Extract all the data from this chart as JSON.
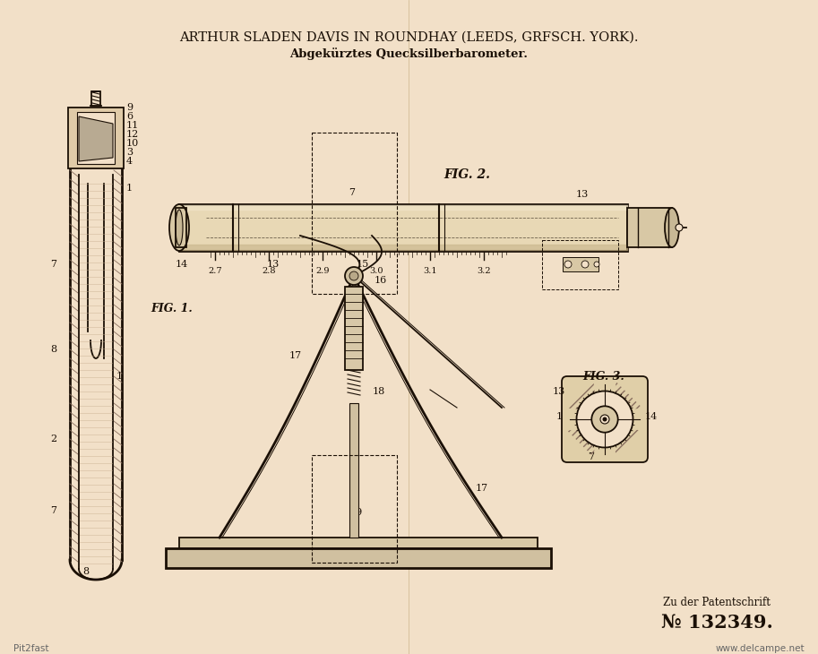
{
  "bg_color": "#f2e0c8",
  "line_color": "#1a0f05",
  "title1": "ARTHUR SLADEN DAVIS IN ROUNDHAY (LEEDS, GRFSCH. YORK).",
  "title2": "Abgekürztes Quecksilberbarometer.",
  "bottom_right1": "Zu der Patentschrift",
  "bottom_right2": "№ 132349.",
  "watermark_left": "Pit2fast",
  "watermark_right": "www.delcampe.net",
  "fig1_label": "FIG. 1.",
  "fig2_label": "FIG. 2.",
  "fig3_label": "FIG. 3."
}
